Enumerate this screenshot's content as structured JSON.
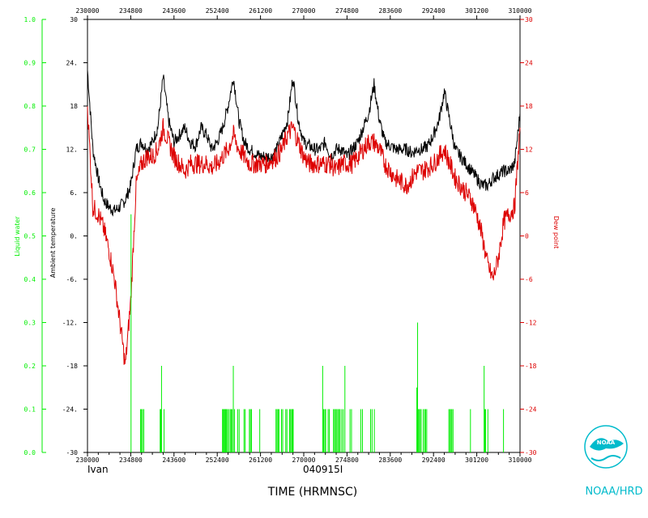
{
  "chart_data": {
    "type": "line",
    "flight_label": "Ivan",
    "date_label": "040915I",
    "xlabel": "TIME (HRMNSC)",
    "left_outer_axis": {
      "label": "Liquid water",
      "ylim": [
        0.0,
        1.0
      ],
      "ticks": [
        "1.0",
        "0.9",
        "0.8",
        "0.7",
        "0.6",
        "0.5",
        "0.4",
        "0.3",
        "0.2",
        "0.1",
        "0.0"
      ],
      "color": "#00ee00"
    },
    "left_inner_axis": {
      "label": "Ambient temperature",
      "ylim": [
        -30,
        30
      ],
      "ticks": [
        "30",
        "24.",
        "18",
        "12.",
        "6.",
        "0.",
        "-6.",
        "-12.",
        "-18",
        "-24.",
        "-30"
      ],
      "color": "#000000"
    },
    "right_axis": {
      "label": "Dew point",
      "ylim": [
        -30,
        30
      ],
      "ticks": [
        "30",
        "24",
        "18",
        "12",
        "6",
        "0",
        "-6",
        "-12",
        "-18",
        "-24",
        "-30"
      ],
      "color": "#dd0000"
    },
    "x_ticks": [
      "230000",
      "234800",
      "243600",
      "252400",
      "261200",
      "270000",
      "274800",
      "283600",
      "292400",
      "301200",
      "310000"
    ],
    "x_tick_seconds": [
      82800,
      85680,
      88560,
      91440,
      94320,
      97200,
      100080,
      102960,
      105840,
      108720,
      111600
    ],
    "series": [
      {
        "name": "Ambient temperature",
        "color": "#000000",
        "x": [
          82800,
          83160,
          83520,
          83880,
          84240,
          84600,
          84960,
          85320,
          85680,
          86040,
          86400,
          86760,
          87120,
          87480,
          87840,
          88200,
          88560,
          88920,
          89280,
          89640,
          90000,
          90360,
          90720,
          91080,
          91440,
          91800,
          92160,
          92520,
          92880,
          93240,
          93600,
          93960,
          94320,
          94680,
          95040,
          95400,
          95760,
          96120,
          96480,
          96840,
          97200,
          97560,
          97920,
          98280,
          98640,
          99000,
          99360,
          99720,
          100080,
          100440,
          100800,
          101160,
          101520,
          101880,
          102240,
          102600,
          102960,
          103320,
          103680,
          104040,
          104400,
          104760,
          105120,
          105480,
          105840,
          106200,
          106560,
          106920,
          107280,
          107640,
          108000,
          108360,
          108720,
          109080,
          109440,
          109800,
          110160,
          110520,
          110880,
          111240,
          111600
        ],
        "y": [
          23,
          12,
          8,
          5,
          4,
          3.5,
          4,
          5,
          7,
          12,
          13,
          12,
          13,
          15,
          22,
          16,
          13,
          14,
          15,
          13,
          12.5,
          15,
          14,
          12,
          13,
          15,
          18,
          22,
          16,
          13,
          12,
          11.5,
          11,
          11,
          11,
          12,
          14,
          16,
          22,
          16,
          13,
          12.5,
          12,
          12,
          13,
          11,
          12,
          12,
          11,
          12,
          13,
          15,
          17,
          21,
          16,
          13,
          12.5,
          12,
          12,
          12,
          11.5,
          12,
          12,
          12.5,
          14,
          16,
          20,
          16,
          12,
          11,
          10,
          9,
          8,
          7,
          7,
          8,
          8.5,
          9,
          9,
          10,
          17
        ],
        "noise": 0.9
      },
      {
        "name": "Dew point",
        "color": "#dd0000",
        "x": [
          82800,
          83160,
          83520,
          83880,
          84240,
          84600,
          84960,
          85320,
          85680,
          86040,
          86400,
          86760,
          87120,
          87480,
          87840,
          88200,
          88560,
          88920,
          89280,
          89640,
          90000,
          90360,
          90720,
          91080,
          91440,
          91800,
          92160,
          92520,
          92880,
          93240,
          93600,
          93960,
          94320,
          94680,
          95040,
          95400,
          95760,
          96120,
          96480,
          96840,
          97200,
          97560,
          97920,
          98280,
          98640,
          99000,
          99360,
          99720,
          100080,
          100440,
          100800,
          101160,
          101520,
          101880,
          102240,
          102600,
          102960,
          103320,
          103680,
          104040,
          104400,
          104760,
          105120,
          105480,
          105840,
          106200,
          106560,
          106920,
          107280,
          107640,
          108000,
          108360,
          108720,
          109080,
          109440,
          109800,
          110160,
          110520,
          110880,
          111240,
          111600
        ],
        "y": [
          18,
          4,
          3,
          1,
          -2,
          -6,
          -12,
          -18,
          -9,
          7,
          10,
          11,
          11,
          12,
          15,
          13,
          11,
          10,
          9,
          10,
          10,
          10,
          10,
          9.5,
          10,
          11,
          12,
          14,
          12,
          11,
          10,
          10,
          10,
          10,
          10.5,
          11,
          12,
          14,
          15,
          13,
          11,
          10,
          10,
          10,
          10,
          10,
          9,
          10,
          10,
          10,
          11,
          12,
          13,
          13,
          12,
          10,
          9,
          8,
          7.5,
          7,
          8,
          9,
          9,
          9.5,
          10,
          11,
          12,
          10,
          8,
          7,
          6,
          5,
          3,
          0,
          -4,
          -6,
          -3,
          2,
          3,
          4,
          15
        ],
        "noise": 1.4
      },
      {
        "name": "Liquid water",
        "color": "#00ee00",
        "type": "spikes",
        "x": [
          85700,
          86330,
          86400,
          86460,
          86550,
          87640,
          87680,
          87730,
          87900,
          91790,
          91840,
          91900,
          91950,
          92000,
          92060,
          92120,
          92200,
          92300,
          92360,
          92420,
          92510,
          92580,
          92800,
          92900,
          93220,
          93300,
          93580,
          93650,
          93720,
          94270,
          95350,
          95420,
          95490,
          95550,
          95720,
          95800,
          96000,
          96080,
          96260,
          96320,
          96400,
          96440,
          96500,
          98460,
          98520,
          98600,
          98660,
          98820,
          98900,
          99180,
          99250,
          99320,
          99400,
          99470,
          99550,
          99620,
          99730,
          99830,
          99940,
          100280,
          100380,
          101000,
          101110,
          101650,
          101750,
          101900,
          104730,
          104780,
          104820,
          104870,
          104950,
          105020,
          105160,
          105250,
          105310,
          105390,
          106860,
          106930,
          107010,
          107060,
          107140,
          108300,
          109210,
          109250,
          109310,
          109460,
          110500
        ],
        "y": [
          0.55,
          0.1,
          0.1,
          0.1,
          0.1,
          0.1,
          0.1,
          0.2,
          0.1,
          0.1,
          0.1,
          0.1,
          0.1,
          0.1,
          0.1,
          0.1,
          0.1,
          0.1,
          0.1,
          0.1,
          0.2,
          0.1,
          0.1,
          0.1,
          0.1,
          0.1,
          0.1,
          0.1,
          0.1,
          0.1,
          0.1,
          0.1,
          0.1,
          0.1,
          0.1,
          0.1,
          0.1,
          0.1,
          0.1,
          0.1,
          0.1,
          0.1,
          0.1,
          0.2,
          0.1,
          0.1,
          0.1,
          0.1,
          0.1,
          0.1,
          0.1,
          0.1,
          0.1,
          0.1,
          0.1,
          0.1,
          0.1,
          0.1,
          0.2,
          0.1,
          0.1,
          0.1,
          0.1,
          0.1,
          0.1,
          0.1,
          0.15,
          0.3,
          0.1,
          0.1,
          0.1,
          0.1,
          0.1,
          0.1,
          0.1,
          0.1,
          0.1,
          0.1,
          0.1,
          0.1,
          0.1,
          0.1,
          0.2,
          0.1,
          0.1,
          0.1,
          0.1
        ]
      }
    ]
  },
  "logo": {
    "text": "NOAA/HRD",
    "seal_text": "NOAA",
    "color": "#00bbcc"
  }
}
